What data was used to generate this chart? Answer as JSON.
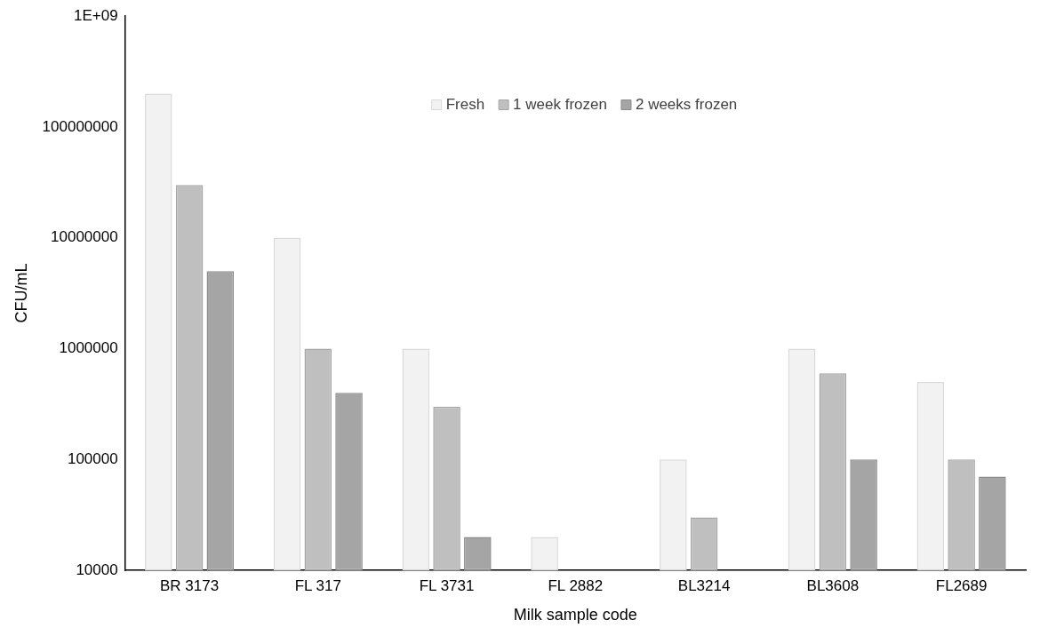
{
  "chart_data": {
    "type": "bar",
    "categories": [
      "BR 3173",
      "FL 317",
      "FL 3731",
      "FL 2882",
      "BL3214",
      "BL3608",
      "FL2689"
    ],
    "series": [
      {
        "name": "Fresh",
        "color": "#f2f2f2",
        "values": [
          200000000,
          10000000,
          1000000,
          20000,
          100000,
          1000000,
          500000
        ]
      },
      {
        "name": "1 week frozen",
        "color": "#bfbfbf",
        "values": [
          30000000,
          1000000,
          300000,
          10000,
          30000,
          600000,
          100000
        ]
      },
      {
        "name": "2 weeks frozen",
        "color": "#a5a5a5",
        "values": [
          5000000,
          400000,
          20000,
          10000,
          10000,
          100000,
          70000
        ]
      }
    ],
    "xlabel": "Milk sample code",
    "ylabel": "CFU/mL",
    "log": "y",
    "ylim": [
      10000,
      1000000000
    ],
    "yticks": [
      10000,
      100000,
      1000000,
      10000000,
      100000000,
      {
        "value": 1000000000,
        "label": "1E+09"
      }
    ],
    "legend": "top"
  }
}
